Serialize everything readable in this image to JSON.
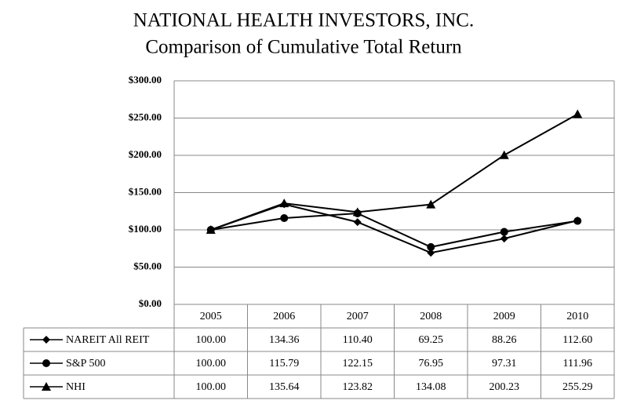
{
  "chart_data": {
    "type": "line",
    "title": "NATIONAL HEALTH INVESTORS, INC.",
    "subtitle": "Comparison of Cumulative Total Return",
    "categories": [
      "2005",
      "2006",
      "2007",
      "2008",
      "2009",
      "2010"
    ],
    "series": [
      {
        "name": "NAREIT All REIT",
        "color": "#000000",
        "marker": "diamond",
        "values": [
          100.0,
          134.36,
          110.4,
          69.25,
          88.26,
          112.6
        ],
        "value_labels": [
          "100.00",
          "134.36",
          "110.40",
          "69.25",
          "88.26",
          "112.60"
        ]
      },
      {
        "name": "S&P 500",
        "color": "#000000",
        "marker": "circle",
        "values": [
          100.0,
          115.79,
          122.15,
          76.95,
          97.31,
          111.96
        ],
        "value_labels": [
          "100.00",
          "115.79",
          "122.15",
          "76.95",
          "97.31",
          "111.96"
        ]
      },
      {
        "name": "NHI",
        "color": "#000000",
        "marker": "triangle",
        "values": [
          100.0,
          135.64,
          123.82,
          134.08,
          200.23,
          255.29
        ],
        "value_labels": [
          "100.00",
          "135.64",
          "123.82",
          "134.08",
          "200.23",
          "255.29"
        ]
      }
    ],
    "ylim": [
      0,
      300
    ],
    "yticks": [
      {
        "value": 0,
        "label": "$0.00"
      },
      {
        "value": 50,
        "label": "$50.00"
      },
      {
        "value": 100,
        "label": "$100.00"
      },
      {
        "value": 150,
        "label": "$150.00"
      },
      {
        "value": 200,
        "label": "$200.00"
      },
      {
        "value": 250,
        "label": "$250.00"
      },
      {
        "value": 300,
        "label": "$300.00"
      }
    ],
    "grid": true
  }
}
